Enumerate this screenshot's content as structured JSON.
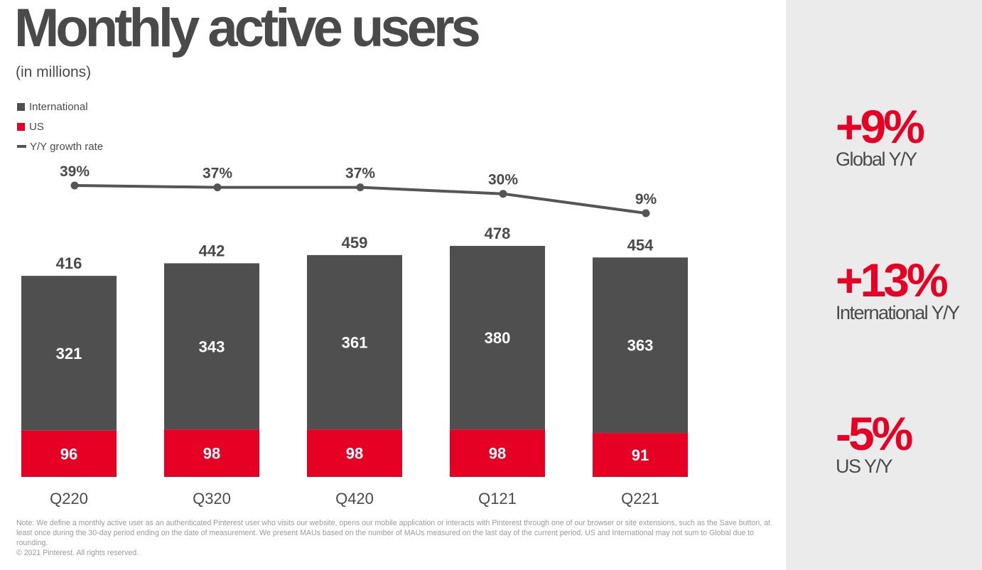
{
  "header": {
    "title": "Monthly active users",
    "subtitle": "(in millions)"
  },
  "legend": {
    "international": "International",
    "us": "US",
    "growth": "Y/Y growth rate"
  },
  "colors": {
    "international": "#4f4f4f",
    "us": "#e60023",
    "growth_line": "#555555",
    "panel": "#ebebeb"
  },
  "chart_data": {
    "type": "bar",
    "stacked": true,
    "categories": [
      "Q220",
      "Q320",
      "Q420",
      "Q121",
      "Q221"
    ],
    "series": [
      {
        "name": "US",
        "values": [
          96,
          98,
          98,
          98,
          91
        ]
      },
      {
        "name": "International",
        "values": [
          321,
          343,
          361,
          380,
          363
        ]
      }
    ],
    "totals": [
      416,
      442,
      459,
      478,
      454
    ],
    "line_series": {
      "name": "Y/Y growth rate",
      "values": [
        39,
        37,
        37,
        30,
        9
      ],
      "labels": [
        "39%",
        "37%",
        "37%",
        "30%",
        "9%"
      ]
    },
    "legend_position": "top-left"
  },
  "side": {
    "stats": [
      {
        "value": "+9%",
        "label": "Global Y/Y"
      },
      {
        "value": "+13%",
        "label": "International Y/Y"
      },
      {
        "value": "-5%",
        "label": "US Y/Y"
      }
    ]
  },
  "footnote": {
    "text": "Note: We define a monthly active user as an authenticated Pinterest user who visits our website, opens our mobile application or interacts with Pinterest through one of our browser or site extensions, such as the Save button, at least once during the 30-day period ending on the date of measurement. We present MAUs based on the number of MAUs measured on the last day of the current period. US and International may not sum to Global due to rounding.",
    "copyright": "© 2021 Pinterest. All rights reserved."
  }
}
